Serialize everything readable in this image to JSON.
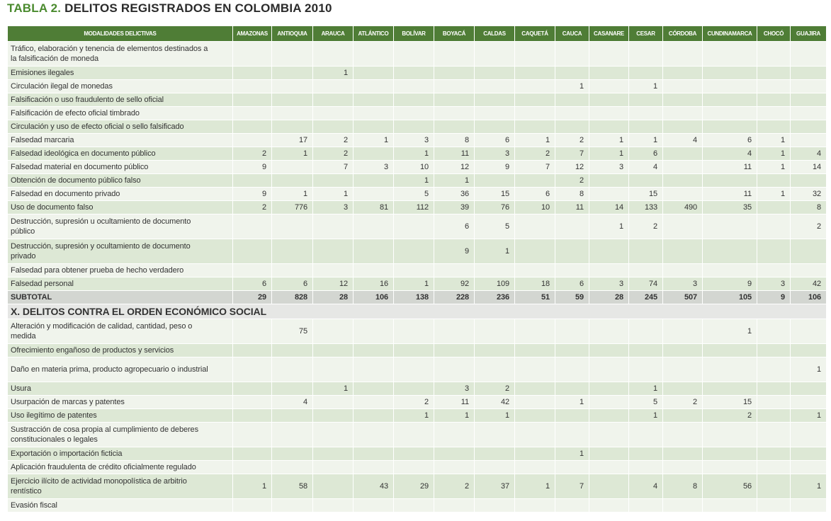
{
  "title": {
    "prefix": "TABLA 2.",
    "text": "DELITOS REGISTRADOS EN COLOMBIA 2010"
  },
  "table": {
    "columns": [
      "MODALIDADES DELICTIVAS",
      "AMAZONAS",
      "ANTIOQUIA",
      "ARAUCA",
      "ATLÁNTICO",
      "BOLÍVAR",
      "BOYACÁ",
      "CALDAS",
      "CAQUETÁ",
      "CAUCA",
      "CASANARE",
      "CESAR",
      "CÓRDOBA",
      "CUNDINAMARCA",
      "CHOCÓ",
      "GUAJIRA"
    ],
    "sections": [
      {
        "rows": [
          {
            "label": "Tráfico, elaboración y tenencia de elementos destinados a la falsificación de moneda",
            "values": [
              null,
              null,
              null,
              null,
              null,
              null,
              null,
              null,
              null,
              null,
              null,
              null,
              null,
              null,
              null
            ]
          },
          {
            "label": "Emisiones ilegales",
            "values": [
              null,
              null,
              1,
              null,
              null,
              null,
              null,
              null,
              null,
              null,
              null,
              null,
              null,
              null,
              null
            ]
          },
          {
            "label": "Circulación ilegal de monedas",
            "values": [
              null,
              null,
              null,
              null,
              null,
              null,
              null,
              null,
              1,
              null,
              1,
              null,
              null,
              null,
              null
            ]
          },
          {
            "label": "Falsificación o uso fraudulento de sello oficial",
            "values": [
              null,
              null,
              null,
              null,
              null,
              null,
              null,
              null,
              null,
              null,
              null,
              null,
              null,
              null,
              null
            ]
          },
          {
            "label": "Falsificación de efecto oficial timbrado",
            "values": [
              null,
              null,
              null,
              null,
              null,
              null,
              null,
              null,
              null,
              null,
              null,
              null,
              null,
              null,
              null
            ]
          },
          {
            "label": "Circulación y uso de efecto oficial o sello falsificado",
            "values": [
              null,
              null,
              null,
              null,
              null,
              null,
              null,
              null,
              null,
              null,
              null,
              null,
              null,
              null,
              null
            ]
          },
          {
            "label": "Falsedad marcaria",
            "values": [
              null,
              17,
              2,
              1,
              3,
              8,
              6,
              1,
              2,
              1,
              1,
              4,
              6,
              1,
              null
            ]
          },
          {
            "label": "Falsedad ideológica en documento público",
            "values": [
              2,
              1,
              2,
              null,
              1,
              11,
              3,
              2,
              7,
              1,
              6,
              null,
              4,
              1,
              4
            ]
          },
          {
            "label": "Falsedad material en documento público",
            "values": [
              9,
              null,
              7,
              3,
              10,
              12,
              9,
              7,
              12,
              3,
              4,
              null,
              11,
              1,
              14
            ]
          },
          {
            "label": "Obtención de documento público falso",
            "values": [
              null,
              null,
              null,
              null,
              1,
              1,
              null,
              null,
              2,
              null,
              null,
              null,
              null,
              null,
              null
            ]
          },
          {
            "label": "Falsedad en documento privado",
            "values": [
              9,
              1,
              1,
              null,
              5,
              36,
              15,
              6,
              8,
              null,
              15,
              null,
              11,
              1,
              32
            ]
          },
          {
            "label": "Uso de documento falso",
            "values": [
              2,
              776,
              3,
              81,
              112,
              39,
              76,
              10,
              11,
              14,
              133,
              490,
              35,
              null,
              8
            ]
          },
          {
            "label": "Destrucción, supresión u ocultamiento de documento público",
            "values": [
              null,
              null,
              null,
              null,
              null,
              6,
              5,
              null,
              null,
              1,
              2,
              null,
              null,
              null,
              2
            ]
          },
          {
            "label": "Destrucción, supresión y ocultamiento de documento privado",
            "values": [
              null,
              null,
              null,
              null,
              null,
              9,
              1,
              null,
              null,
              null,
              null,
              null,
              null,
              null,
              null
            ]
          },
          {
            "label": "Falsedad para obtener prueba de hecho verdadero",
            "values": [
              null,
              null,
              null,
              null,
              null,
              null,
              null,
              null,
              null,
              null,
              null,
              null,
              null,
              null,
              null
            ]
          },
          {
            "label": "Falsedad personal",
            "values": [
              6,
              6,
              12,
              16,
              1,
              92,
              109,
              18,
              6,
              3,
              74,
              3,
              9,
              3,
              42
            ]
          }
        ],
        "subtotal": {
          "label": "SUBTOTAL",
          "values": [
            29,
            828,
            28,
            106,
            138,
            228,
            236,
            51,
            59,
            28,
            245,
            507,
            105,
            9,
            106
          ]
        }
      },
      {
        "heading": "X. DELITOS CONTRA EL ORDEN ECONÓMICO SOCIAL",
        "rows": [
          {
            "label": "Alteración y modificación de calidad, cantidad, peso o medida",
            "values": [
              null,
              75,
              null,
              null,
              null,
              null,
              null,
              null,
              null,
              null,
              null,
              null,
              1,
              null,
              null
            ]
          },
          {
            "label": "Ofrecimiento engañoso de productos y servicios",
            "values": [
              null,
              null,
              null,
              null,
              null,
              null,
              null,
              null,
              null,
              null,
              null,
              null,
              null,
              null,
              null
            ]
          },
          {
            "label": "Daño en materia prima, producto agropecuario o industrial",
            "values": [
              null,
              null,
              null,
              null,
              null,
              null,
              null,
              null,
              null,
              null,
              null,
              null,
              null,
              null,
              1
            ]
          },
          {
            "label": "Usura",
            "values": [
              null,
              null,
              1,
              null,
              null,
              3,
              2,
              null,
              null,
              null,
              1,
              null,
              null,
              null,
              null
            ]
          },
          {
            "label": "Usurpación de marcas y patentes",
            "values": [
              null,
              4,
              null,
              null,
              2,
              11,
              42,
              null,
              1,
              null,
              5,
              2,
              15,
              null,
              null
            ]
          },
          {
            "label": "Uso ilegítimo de patentes",
            "values": [
              null,
              null,
              null,
              null,
              1,
              1,
              1,
              null,
              null,
              null,
              1,
              null,
              2,
              null,
              1
            ]
          },
          {
            "label": "Sustracción de cosa propia al cumplimiento de deberes constitucionales o legales",
            "values": [
              null,
              null,
              null,
              null,
              null,
              null,
              null,
              null,
              null,
              null,
              null,
              null,
              null,
              null,
              null
            ]
          },
          {
            "label": "Exportación o importación ficticia",
            "values": [
              null,
              null,
              null,
              null,
              null,
              null,
              null,
              null,
              1,
              null,
              null,
              null,
              null,
              null,
              null
            ]
          },
          {
            "label": "Aplicación fraudulenta de crédito oficialmente regulado",
            "values": [
              null,
              null,
              null,
              null,
              null,
              null,
              null,
              null,
              null,
              null,
              null,
              null,
              null,
              null,
              null
            ]
          },
          {
            "label": "Ejercicio ilícito de actividad monopolística de arbitrio rentístico",
            "values": [
              1,
              58,
              null,
              43,
              29,
              2,
              37,
              1,
              7,
              null,
              4,
              8,
              56,
              null,
              1
            ]
          },
          {
            "label": "Evasión fiscal",
            "values": [
              null,
              null,
              null,
              null,
              null,
              null,
              null,
              null,
              null,
              null,
              null,
              null,
              null,
              null,
              null
            ]
          }
        ]
      }
    ]
  }
}
